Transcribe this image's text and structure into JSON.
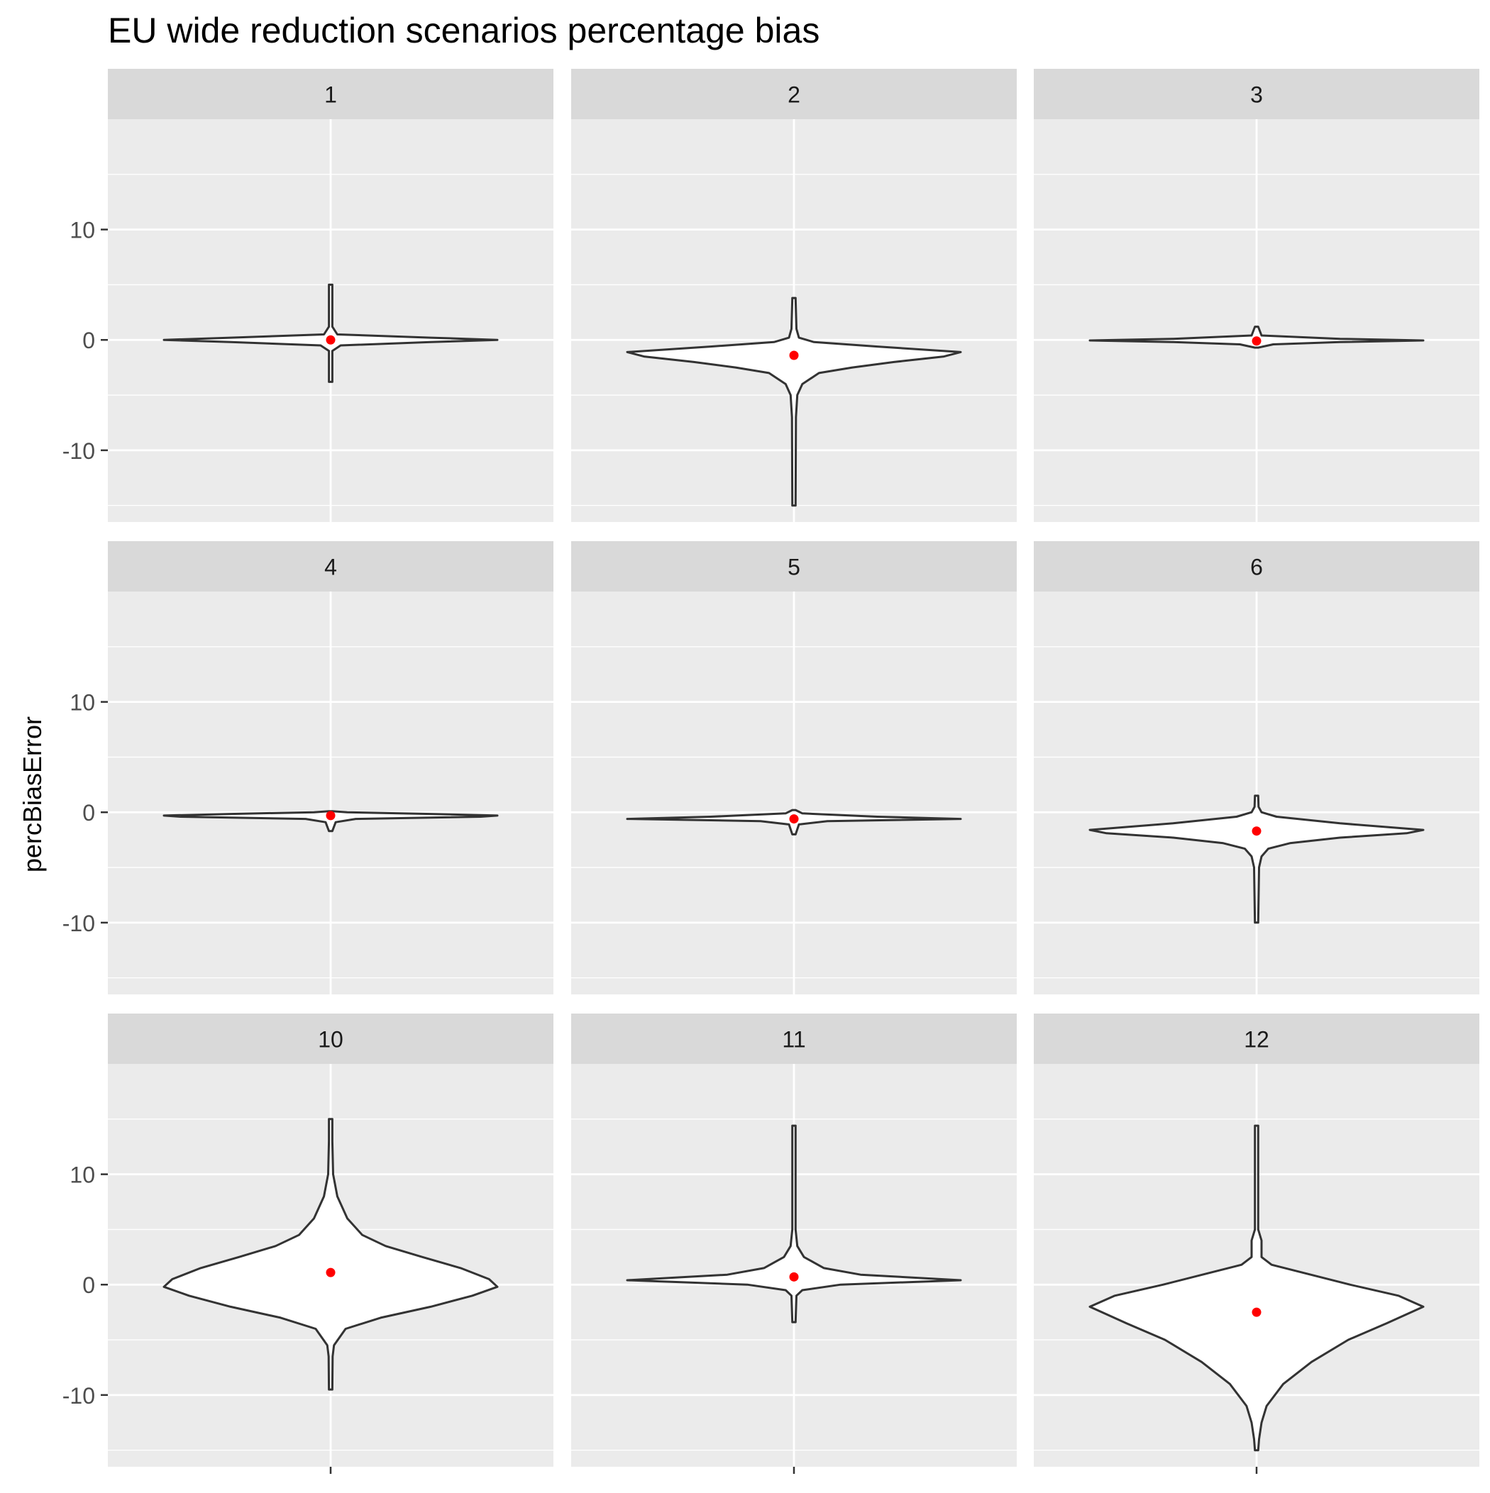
{
  "chart_data": {
    "type": "violin",
    "title": "EU wide reduction scenarios percentage bias",
    "xlabel": "",
    "ylabel": "percBiasError",
    "ylim": [
      -16.5,
      20
    ],
    "yticks": [
      -10,
      0,
      10
    ],
    "grid": true,
    "legend": "none",
    "colors": {
      "panel_bg": "#EBEBEB",
      "strip_bg": "#D9D9D9",
      "grid": "#FFFFFF",
      "violin_fill": "#FFFFFF",
      "violin_stroke": "#333333",
      "mean_point": "#FF0000",
      "tick_text": "#4D4D4D",
      "text": "#1A1A1A"
    },
    "panels": [
      {
        "label": "1",
        "mean": 0.0,
        "profile": [
          [
            -3.8,
            0.01
          ],
          [
            -1.0,
            0.01
          ],
          [
            -0.5,
            0.06
          ],
          [
            -0.2,
            0.6
          ],
          [
            0.0,
            1.0
          ],
          [
            0.2,
            0.6
          ],
          [
            0.5,
            0.04
          ],
          [
            1.2,
            0.01
          ],
          [
            5.0,
            0.01
          ]
        ]
      },
      {
        "label": "2",
        "mean": -1.4,
        "profile": [
          [
            -15.0,
            0.01
          ],
          [
            -7.0,
            0.012
          ],
          [
            -5.0,
            0.02
          ],
          [
            -4.0,
            0.05
          ],
          [
            -3.0,
            0.15
          ],
          [
            -2.5,
            0.35
          ],
          [
            -2.0,
            0.6
          ],
          [
            -1.5,
            0.9
          ],
          [
            -1.1,
            1.0
          ],
          [
            -0.6,
            0.5
          ],
          [
            -0.2,
            0.12
          ],
          [
            0.2,
            0.03
          ],
          [
            1.0,
            0.015
          ],
          [
            3.8,
            0.01
          ]
        ]
      },
      {
        "label": "3",
        "mean": -0.1,
        "profile": [
          [
            -0.7,
            0.01
          ],
          [
            -0.4,
            0.1
          ],
          [
            -0.2,
            0.5
          ],
          [
            -0.05,
            1.0
          ],
          [
            0.1,
            0.5
          ],
          [
            0.4,
            0.03
          ],
          [
            1.2,
            0.01
          ]
        ]
      },
      {
        "label": "4",
        "mean": -0.3,
        "profile": [
          [
            -1.7,
            0.01
          ],
          [
            -0.9,
            0.03
          ],
          [
            -0.6,
            0.15
          ],
          [
            -0.4,
            0.9
          ],
          [
            -0.3,
            1.0
          ],
          [
            -0.15,
            0.6
          ],
          [
            0.0,
            0.1
          ],
          [
            0.1,
            0.01
          ]
        ]
      },
      {
        "label": "5",
        "mean": -0.6,
        "profile": [
          [
            -2.0,
            0.01
          ],
          [
            -1.1,
            0.03
          ],
          [
            -0.8,
            0.2
          ],
          [
            -0.6,
            1.0
          ],
          [
            -0.4,
            0.5
          ],
          [
            -0.1,
            0.05
          ],
          [
            0.2,
            0.01
          ]
        ]
      },
      {
        "label": "6",
        "mean": -1.7,
        "profile": [
          [
            -10.0,
            0.01
          ],
          [
            -5.0,
            0.015
          ],
          [
            -4.0,
            0.03
          ],
          [
            -3.3,
            0.07
          ],
          [
            -2.8,
            0.2
          ],
          [
            -2.3,
            0.5
          ],
          [
            -1.9,
            0.9
          ],
          [
            -1.6,
            1.0
          ],
          [
            -1.0,
            0.5
          ],
          [
            -0.4,
            0.12
          ],
          [
            0.0,
            0.03
          ],
          [
            0.5,
            0.012
          ],
          [
            1.5,
            0.01
          ]
        ]
      },
      {
        "label": "10",
        "mean": 1.1,
        "profile": [
          [
            -9.5,
            0.01
          ],
          [
            -6.5,
            0.012
          ],
          [
            -5.5,
            0.02
          ],
          [
            -4.0,
            0.09
          ],
          [
            -3.0,
            0.3
          ],
          [
            -2.0,
            0.6
          ],
          [
            -1.0,
            0.85
          ],
          [
            -0.2,
            1.0
          ],
          [
            0.5,
            0.95
          ],
          [
            1.5,
            0.78
          ],
          [
            2.5,
            0.55
          ],
          [
            3.5,
            0.33
          ],
          [
            4.5,
            0.19
          ],
          [
            6.0,
            0.1
          ],
          [
            8.0,
            0.04
          ],
          [
            10.0,
            0.015
          ],
          [
            13.0,
            0.01
          ],
          [
            15.0,
            0.01
          ]
        ]
      },
      {
        "label": "11",
        "mean": 0.7,
        "profile": [
          [
            -3.4,
            0.01
          ],
          [
            -1.0,
            0.015
          ],
          [
            -0.5,
            0.05
          ],
          [
            0.0,
            0.28
          ],
          [
            0.4,
            1.0
          ],
          [
            0.9,
            0.4
          ],
          [
            1.5,
            0.18
          ],
          [
            2.5,
            0.06
          ],
          [
            3.5,
            0.02
          ],
          [
            5.0,
            0.01
          ],
          [
            14.4,
            0.01
          ]
        ]
      },
      {
        "label": "12",
        "mean": -2.5,
        "profile": [
          [
            -15.0,
            0.01
          ],
          [
            -14.0,
            0.015
          ],
          [
            -12.5,
            0.03
          ],
          [
            -11.0,
            0.06
          ],
          [
            -9.0,
            0.16
          ],
          [
            -7.0,
            0.33
          ],
          [
            -5.0,
            0.55
          ],
          [
            -3.5,
            0.78
          ],
          [
            -2.0,
            1.0
          ],
          [
            -1.0,
            0.85
          ],
          [
            0.0,
            0.56
          ],
          [
            1.0,
            0.3
          ],
          [
            1.8,
            0.09
          ],
          [
            2.5,
            0.03
          ],
          [
            4.0,
            0.03
          ],
          [
            5.0,
            0.01
          ],
          [
            14.4,
            0.01
          ]
        ]
      }
    ]
  }
}
